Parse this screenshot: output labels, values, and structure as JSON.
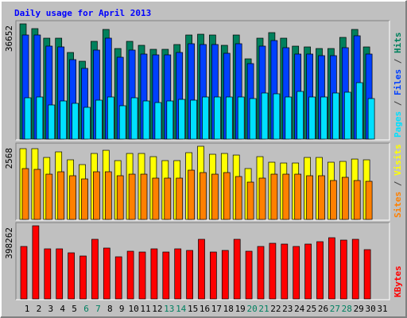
{
  "title": "Daily usage for April 2013",
  "chart_data": [
    {
      "type": "bar",
      "ylim": [
        0,
        36652
      ],
      "yticks": [
        36652
      ],
      "legend_separator": " / ",
      "series": [
        {
          "name": "Hits",
          "color": "#00805c",
          "values": [
            36652,
            35136,
            32100,
            32100,
            27550,
            24770,
            31090,
            34880,
            28810,
            31090,
            29830,
            28560,
            28560,
            30080,
            33110,
            33360,
            33110,
            29830,
            33110,
            25530,
            32100,
            33870,
            32100,
            29570,
            29320,
            28810,
            28810,
            32350,
            34880,
            29320,
            null
          ]
        },
        {
          "name": "Files",
          "color": "#0040ff",
          "values": [
            33117,
            33117,
            29578,
            29325,
            25280,
            22499,
            28314,
            32106,
            26038,
            28314,
            27050,
            26797,
            26797,
            27555,
            30336,
            30083,
            30083,
            27302,
            30336,
            24016,
            29578,
            31347,
            29072,
            27050,
            27050,
            26544,
            26544,
            29072,
            32864,
            27050,
            null
          ]
        },
        {
          "name": "Pages",
          "color": "#00e0ff",
          "values": [
            13146,
            13398,
            10870,
            12134,
            11376,
            10112,
            12387,
            13398,
            10618,
            13146,
            12134,
            11629,
            12134,
            12640,
            12387,
            13398,
            13398,
            13398,
            13398,
            12893,
            14662,
            14410,
            13398,
            15168,
            13398,
            13398,
            14662,
            14915,
            17949,
            12893,
            null
          ]
        }
      ]
    },
    {
      "type": "bar",
      "ylim": [
        0,
        2568
      ],
      "yticks": [
        2568
      ],
      "legend_separator": " / ",
      "series": [
        {
          "name": "Visits",
          "color": "#ffff00",
          "values": [
            2484,
            2484,
            2176,
            2372,
            2093,
            1925,
            2316,
            2427,
            2065,
            2316,
            2316,
            2204,
            2065,
            2065,
            2344,
            2568,
            2288,
            2316,
            2260,
            1786,
            2204,
            2009,
            1981,
            1981,
            2176,
            2176,
            2009,
            2037,
            2120,
            2093,
            null
          ]
        },
        {
          "name": "Sites",
          "color": "#ff8000",
          "values": [
            1786,
            1758,
            1590,
            1674,
            1535,
            1423,
            1674,
            1674,
            1535,
            1590,
            1590,
            1451,
            1451,
            1451,
            1730,
            1646,
            1590,
            1646,
            1507,
            1311,
            1451,
            1590,
            1590,
            1590,
            1535,
            1535,
            1367,
            1479,
            1367,
            1339,
            null
          ]
        }
      ]
    },
    {
      "type": "bar",
      "ylim": [
        0,
        398262
      ],
      "yticks": [
        398262
      ],
      "categories": [
        "1",
        "2",
        "3",
        "4",
        "5",
        "6",
        "7",
        "8",
        "9",
        "10",
        "11",
        "12",
        "13",
        "14",
        "15",
        "16",
        "17",
        "18",
        "19",
        "20",
        "21",
        "22",
        "23",
        "24",
        "25",
        "26",
        "27",
        "28",
        "29",
        "30",
        "31"
      ],
      "category_colors": [
        "#000000",
        "#000000",
        "#000000",
        "#000000",
        "#000000",
        "#008060",
        "#008060",
        "#000000",
        "#000000",
        "#000000",
        "#000000",
        "#000000",
        "#008060",
        "#008060",
        "#000000",
        "#000000",
        "#000000",
        "#000000",
        "#000000",
        "#008060",
        "#008060",
        "#000000",
        "#000000",
        "#000000",
        "#000000",
        "#000000",
        "#008060",
        "#008060",
        "#000000",
        "#000000",
        "#000000"
      ],
      "series": [
        {
          "name": "KBytes",
          "color": "#ff0000",
          "values": [
            285714,
            398262,
            272727,
            272727,
            251082,
            233766,
            324675,
            277056,
            229437,
            259740,
            255411,
            272727,
            255411,
            272727,
            264069,
            324675,
            255411,
            264069,
            324675,
            259740,
            285714,
            303030,
            298701,
            285714,
            298701,
            311688,
            333333,
            320346,
            324675,
            268398,
            null
          ]
        }
      ]
    }
  ]
}
